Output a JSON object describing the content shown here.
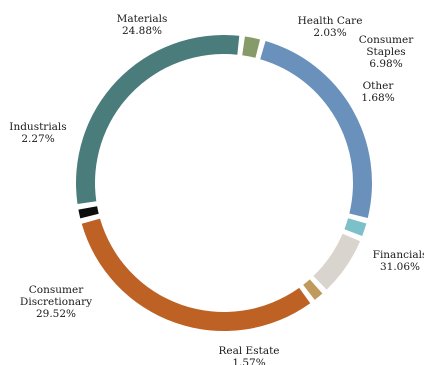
{
  "chart_data": {
    "type": "pie",
    "variant": "donut",
    "title": "",
    "slices": [
      {
        "name": "Materials",
        "value_label": "24.88%",
        "value": 24.88,
        "color": "#6a91bb"
      },
      {
        "name": "Health Care",
        "value_label": "2.03%",
        "value": 2.03,
        "color": "#7cc0c9"
      },
      {
        "name": "Consumer Staples",
        "name_lines": [
          "Consumer",
          "Staples"
        ],
        "value_label": "6.98%",
        "value": 6.98,
        "color": "#d9d4ce"
      },
      {
        "name": "Other",
        "value_label": "1.68%",
        "value": 1.68,
        "color": "#bf9a5c"
      },
      {
        "name": "Financials",
        "value_label": "31.06%",
        "value": 31.06,
        "color": "#bd6224"
      },
      {
        "name": "Real Estate",
        "value_label": "1.57%",
        "value": 1.57,
        "color": "#0d0d0d"
      },
      {
        "name": "Consumer Discretionary",
        "name_lines": [
          "Consumer",
          "Discretionary"
        ],
        "value_label": "29.52%",
        "value": 29.52,
        "color": "#4a7c7b"
      },
      {
        "name": "Industrials",
        "value_label": "2.27%",
        "value": 2.27,
        "color": "#879a6a"
      }
    ],
    "legend": "none"
  }
}
